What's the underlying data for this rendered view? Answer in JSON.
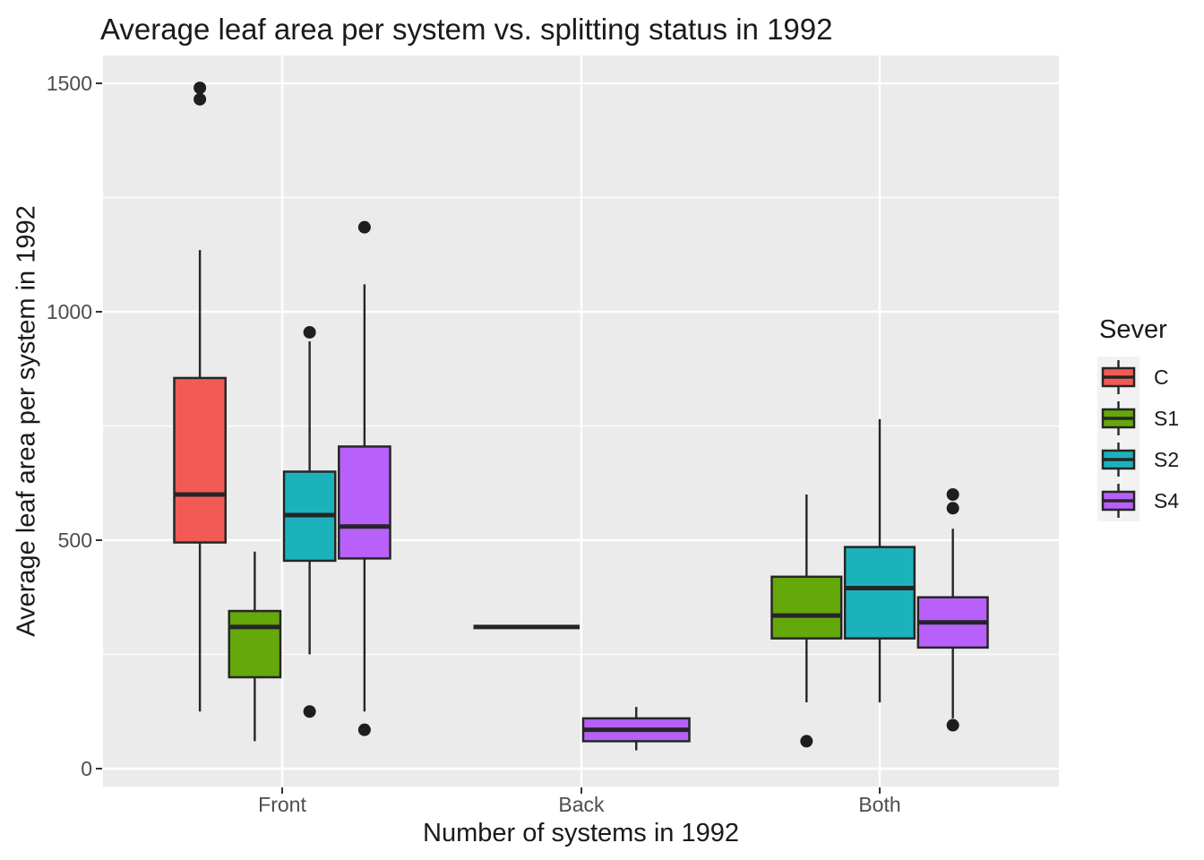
{
  "chart_data": {
    "type": "boxplot",
    "title": "Average leaf area per system vs. splitting status in 1992",
    "xlabel": "Number of systems in 1992",
    "ylabel": "Average leaf area per system in 1992",
    "categories": [
      "Front",
      "Back",
      "Both"
    ],
    "y_ticks": [
      0,
      500,
      1000,
      1500
    ],
    "y_minor_gridlines": [
      250,
      750,
      1250
    ],
    "ylim": [
      0,
      1500
    ],
    "grid": "on",
    "legend_position": "right",
    "legend": {
      "title": "Sever",
      "entries": [
        {
          "label": "C",
          "color": "#F25B55"
        },
        {
          "label": "S1",
          "color": "#64A80A"
        },
        {
          "label": "S2",
          "color": "#1CB2BC"
        },
        {
          "label": "S4",
          "color": "#B760FA"
        }
      ]
    },
    "style": {
      "panel_bg": "#EBEBEB",
      "gridline_color": "#FFFFFF",
      "box_stroke": "#262626",
      "outlier_color": "#1E1E1E",
      "tick_label_color": "#4D4D4D",
      "legend_key_bg": "#F2F2F2"
    },
    "boxes": [
      {
        "category": "Front",
        "sever": "C",
        "color": "#F25B55",
        "whisker_low": 125,
        "q1": 495,
        "median": 600,
        "q3": 855,
        "whisker_high": 1135,
        "outliers": [
          1465,
          1490
        ]
      },
      {
        "category": "Front",
        "sever": "S1",
        "color": "#64A80A",
        "whisker_low": 60,
        "q1": 200,
        "median": 310,
        "q3": 345,
        "whisker_high": 475,
        "outliers": []
      },
      {
        "category": "Front",
        "sever": "S2",
        "color": "#1CB2BC",
        "whisker_low": 250,
        "q1": 455,
        "median": 555,
        "q3": 650,
        "whisker_high": 935,
        "outliers": [
          955,
          125
        ]
      },
      {
        "category": "Front",
        "sever": "S4",
        "color": "#B760FA",
        "whisker_low": 125,
        "q1": 460,
        "median": 530,
        "q3": 705,
        "whisker_high": 1060,
        "outliers": [
          1185,
          85
        ]
      },
      {
        "category": "Back",
        "flat": true,
        "median": 310,
        "outliers": []
      },
      {
        "category": "Back",
        "sever": "S4",
        "color": "#B760FA",
        "whisker_low": 40,
        "q1": 60,
        "median": 85,
        "q3": 110,
        "whisker_high": 135,
        "outliers": []
      },
      {
        "category": "Both",
        "sever": "S1",
        "color": "#64A80A",
        "whisker_low": 145,
        "q1": 285,
        "median": 335,
        "q3": 420,
        "whisker_high": 600,
        "outliers": [
          60
        ]
      },
      {
        "category": "Both",
        "sever": "S2",
        "color": "#1CB2BC",
        "whisker_low": 145,
        "q1": 285,
        "median": 395,
        "q3": 485,
        "whisker_high": 765,
        "outliers": []
      },
      {
        "category": "Both",
        "sever": "S4",
        "color": "#B760FA",
        "whisker_low": 110,
        "q1": 265,
        "median": 320,
        "q3": 375,
        "whisker_high": 525,
        "outliers": [
          600,
          570,
          95
        ]
      }
    ]
  }
}
